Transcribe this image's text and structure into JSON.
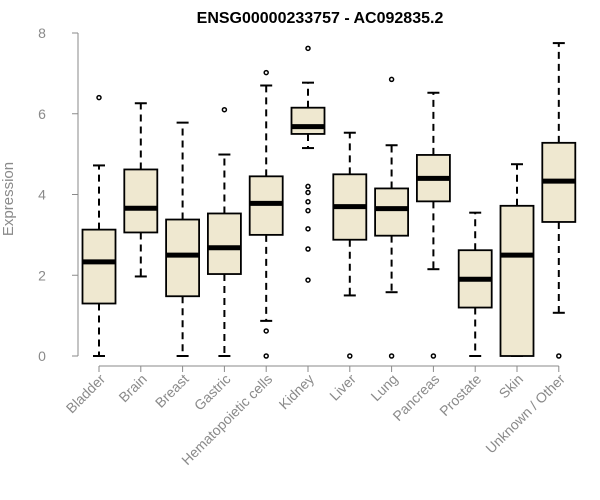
{
  "chart_data": {
    "type": "boxplot",
    "title": "ENSG00000233757 - AC092835.2",
    "xlabel": "",
    "ylabel": "Expression",
    "ylim": [
      0,
      8
    ],
    "yticks": [
      0,
      2,
      4,
      6,
      8
    ],
    "grid": false,
    "legend": "none",
    "box_fill": "#efe8d0",
    "stroke": "#000000",
    "categories": [
      "Bladder",
      "Brain",
      "Breast",
      "Gastric",
      "Hematopoietic cells",
      "Kidney",
      "Liver",
      "Lung",
      "Pancreas",
      "Prostate",
      "Skin",
      "Unknown / Other"
    ],
    "boxes": [
      {
        "min": 0.0,
        "q1": 1.3,
        "median": 2.33,
        "q3": 3.13,
        "max": 4.72,
        "outliers": [
          6.4
        ]
      },
      {
        "min": 1.97,
        "q1": 3.06,
        "median": 3.66,
        "q3": 4.62,
        "max": 6.26,
        "outliers": []
      },
      {
        "min": 0.0,
        "q1": 1.48,
        "median": 2.5,
        "q3": 3.38,
        "max": 5.78,
        "outliers": []
      },
      {
        "min": 0.0,
        "q1": 2.03,
        "median": 2.68,
        "q3": 3.53,
        "max": 4.99,
        "outliers": [
          6.1
        ]
      },
      {
        "min": 0.87,
        "q1": 3.0,
        "median": 3.78,
        "q3": 4.45,
        "max": 6.7,
        "outliers": [
          0.0,
          0.62,
          7.02
        ]
      },
      {
        "min": 5.15,
        "q1": 5.5,
        "median": 5.68,
        "q3": 6.15,
        "max": 6.77,
        "outliers": [
          1.88,
          2.65,
          3.15,
          3.6,
          3.82,
          4.05,
          4.2,
          7.62
        ]
      },
      {
        "min": 1.5,
        "q1": 2.88,
        "median": 3.7,
        "q3": 4.5,
        "max": 5.53,
        "outliers": [
          0.0
        ]
      },
      {
        "min": 1.58,
        "q1": 2.98,
        "median": 3.65,
        "q3": 4.15,
        "max": 5.22,
        "outliers": [
          0.0,
          6.85
        ]
      },
      {
        "min": 2.15,
        "q1": 3.83,
        "median": 4.4,
        "q3": 4.98,
        "max": 6.52,
        "outliers": [
          0.0
        ]
      },
      {
        "min": 0.0,
        "q1": 1.2,
        "median": 1.9,
        "q3": 2.62,
        "max": 3.55,
        "outliers": []
      },
      {
        "min": 0.0,
        "q1": 0.0,
        "median": 2.5,
        "q3": 3.72,
        "max": 4.75,
        "outliers": []
      },
      {
        "min": 1.07,
        "q1": 3.32,
        "median": 4.33,
        "q3": 5.28,
        "max": 7.75,
        "outliers": [
          0.0
        ]
      }
    ]
  }
}
